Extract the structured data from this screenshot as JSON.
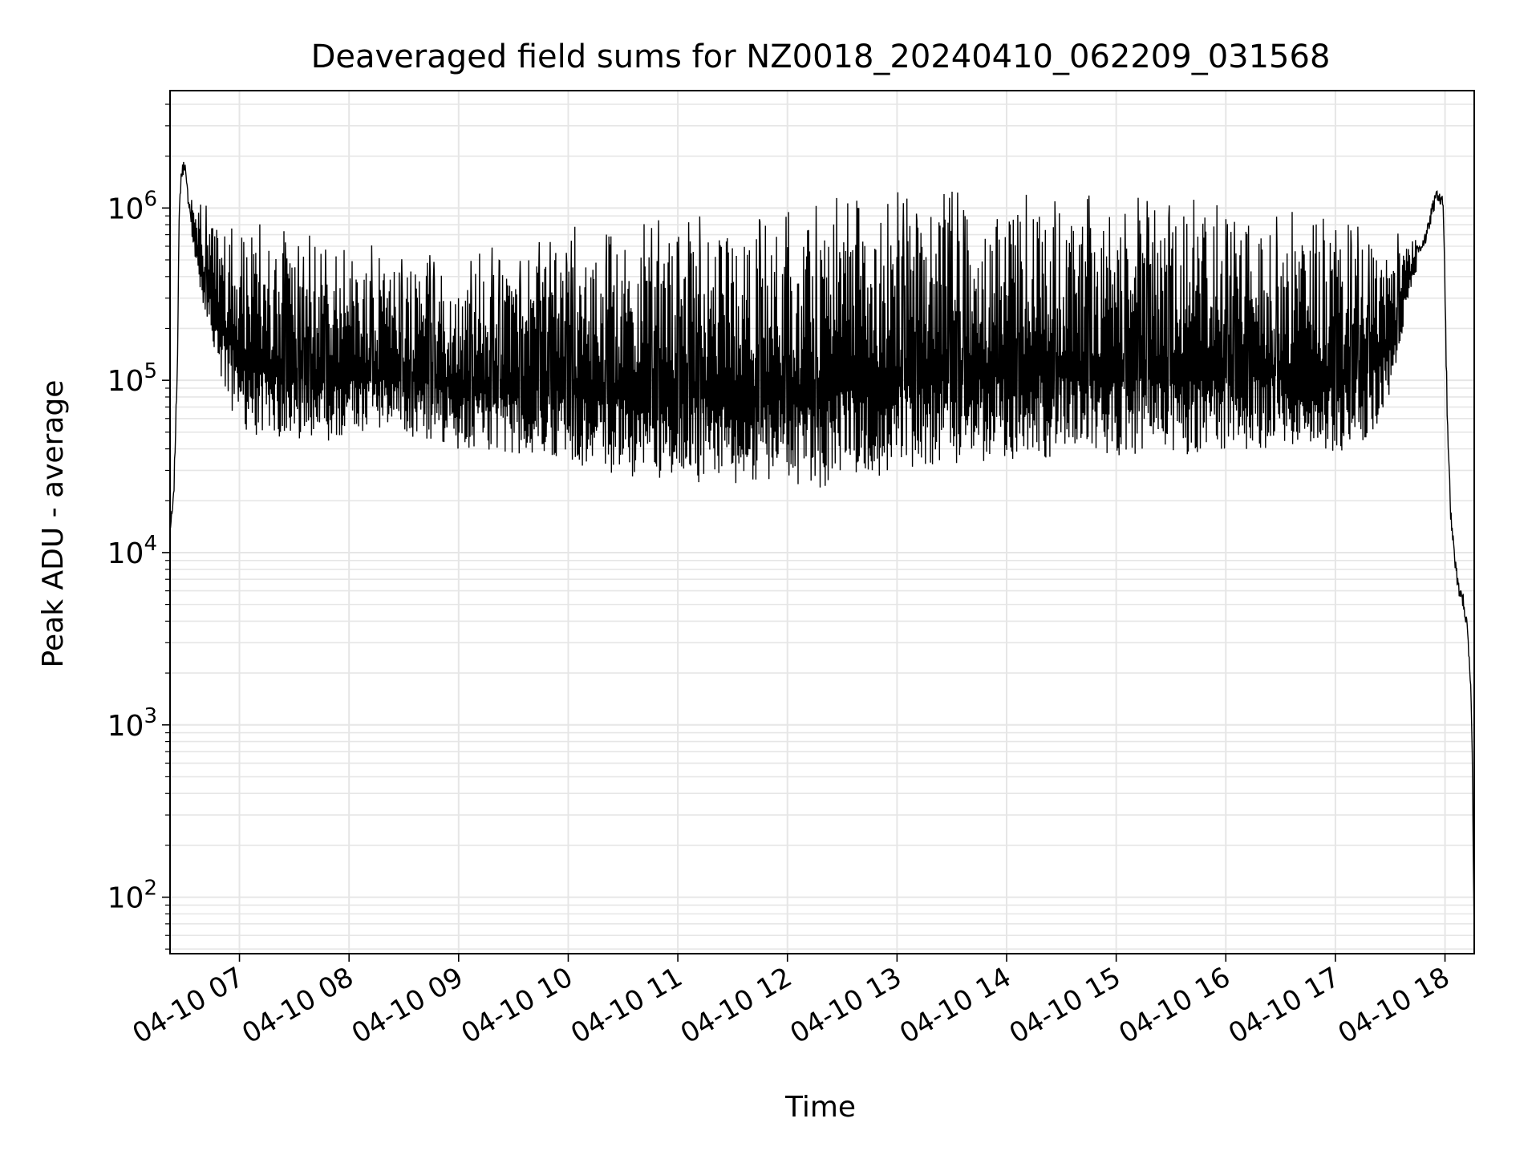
{
  "chart_data": {
    "type": "line",
    "title": "Deaveraged field sums for NZ0018_20240410_062209_031568",
    "xlabel": "Time",
    "ylabel": "Peak ADU - average",
    "x_scale": "time",
    "y_scale": "log",
    "xlim": [
      "2024-04-10 06:22",
      "2024-04-10 18:16"
    ],
    "ylim": [
      47,
      4800000
    ],
    "grid": true,
    "legend": "none",
    "line_color": "#000000",
    "grid_color": "#e6e6e6",
    "x_ticks": [
      "04-10 07",
      "04-10 08",
      "04-10 09",
      "04-10 10",
      "04-10 11",
      "04-10 12",
      "04-10 13",
      "04-10 14",
      "04-10 15",
      "04-10 16",
      "04-10 17",
      "04-10 18"
    ],
    "x_tick_times": [
      "2024-04-10 07:00",
      "2024-04-10 08:00",
      "2024-04-10 09:00",
      "2024-04-10 10:00",
      "2024-04-10 11:00",
      "2024-04-10 12:00",
      "2024-04-10 13:00",
      "2024-04-10 14:00",
      "2024-04-10 15:00",
      "2024-04-10 16:00",
      "2024-04-10 17:00",
      "2024-04-10 18:00"
    ],
    "y_ticks": [
      {
        "base": "10",
        "exp": "2",
        "value": 100
      },
      {
        "base": "10",
        "exp": "3",
        "value": 1000
      },
      {
        "base": "10",
        "exp": "4",
        "value": 10000
      },
      {
        "base": "10",
        "exp": "5",
        "value": 100000
      },
      {
        "base": "10",
        "exp": "6",
        "value": 1000000
      }
    ],
    "series": [
      {
        "x": [
          "2024-04-10 06:22",
          "2024-04-10 06:23",
          "2024-04-10 06:24",
          "2024-04-10 06:26",
          "2024-04-10 06:27",
          "2024-04-10 06:28",
          "2024-04-10 06:30",
          "2024-04-10 06:31",
          "2024-04-10 06:33",
          "2024-04-10 06:35",
          "2024-04-10 06:37",
          "2024-04-10 06:40",
          "2024-04-10 06:45",
          "2024-04-10 06:50",
          "2024-04-10 06:55",
          "2024-04-10 07:00",
          "2024-04-10 07:05",
          "2024-04-10 07:10",
          "2024-04-10 07:20",
          "2024-04-10 07:40",
          "2024-04-10 08:00",
          "2024-04-10 08:30",
          "2024-04-10 09:00",
          "2024-04-10 09:30",
          "2024-04-10 10:00",
          "2024-04-10 10:30",
          "2024-04-10 11:00",
          "2024-04-10 11:30",
          "2024-04-10 12:00",
          "2024-04-10 12:15",
          "2024-04-10 12:30",
          "2024-04-10 13:00",
          "2024-04-10 13:30",
          "2024-04-10 14:00",
          "2024-04-10 14:30",
          "2024-04-10 15:00",
          "2024-04-10 15:30",
          "2024-04-10 16:00",
          "2024-04-10 16:30",
          "2024-04-10 17:00",
          "2024-04-10 17:15",
          "2024-04-10 17:25",
          "2024-04-10 17:30",
          "2024-04-10 17:35",
          "2024-04-10 17:40",
          "2024-04-10 17:45",
          "2024-04-10 17:50",
          "2024-04-10 17:53",
          "2024-04-10 17:56",
          "2024-04-10 17:59",
          "2024-04-10 18:00",
          "2024-04-10 18:01",
          "2024-04-10 18:03",
          "2024-04-10 18:05",
          "2024-04-10 18:07",
          "2024-04-10 18:10",
          "2024-04-10 18:12",
          "2024-04-10 18:14",
          "2024-04-10 18:15",
          "2024-04-10 18:16"
        ],
        "low": [
          14000,
          16000,
          20000,
          100000,
          800000,
          1300000,
          1700000,
          1200000,
          800000,
          550000,
          400000,
          250000,
          160000,
          100000,
          70000,
          55000,
          50000,
          47000,
          45000,
          43000,
          47000,
          47000,
          40000,
          37000,
          32000,
          28000,
          26000,
          25000,
          24000,
          23000,
          25000,
          28000,
          32000,
          35000,
          35000,
          36000,
          37000,
          38000,
          38000,
          38000,
          42000,
          60000,
          80000,
          150000,
          300000,
          450000,
          600000,
          800000,
          1000000,
          900000,
          300000,
          60000,
          15000,
          9000,
          6000,
          5000,
          3500,
          1500,
          500,
          47
        ],
        "high": [
          14000,
          16000,
          22000,
          150000,
          950000,
          1800000,
          2000000,
          1500000,
          1200000,
          1100000,
          1000000,
          900000,
          850000,
          800000,
          750000,
          700000,
          650000,
          600000,
          550000,
          500000,
          480000,
          420000,
          400000,
          450000,
          550000,
          600000,
          650000,
          650000,
          700000,
          800000,
          850000,
          900000,
          900000,
          900000,
          900000,
          850000,
          850000,
          800000,
          700000,
          600000,
          550000,
          550000,
          500000,
          550000,
          600000,
          700000,
          800000,
          1200000,
          1500000,
          1200000,
          500000,
          100000,
          20000,
          11000,
          7000,
          5500,
          4000,
          2000,
          800,
          60
        ]
      }
    ]
  }
}
